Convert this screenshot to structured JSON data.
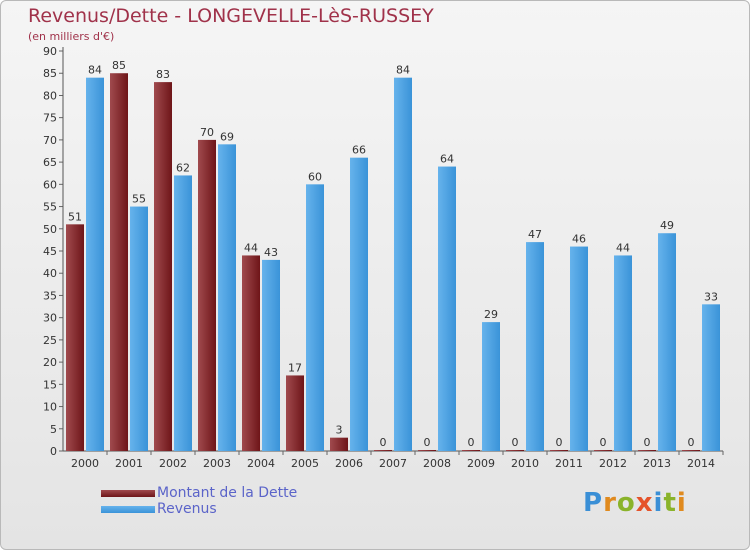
{
  "page": {
    "title": "Revenus/Dette - LONGEVELLE-LèS-RUSSEY",
    "subtitle": "(en milliers d'€)",
    "logo": "Proxiti"
  },
  "legend": [
    {
      "label": "Montant de la Dette",
      "color": "#7a1f25"
    },
    {
      "label": "Revenus",
      "color": "#3d96dc"
    }
  ],
  "colors": {
    "dette": "#6e1518",
    "dette_light": "#a04a4e",
    "revenus": "#3a93d8",
    "revenus_light": "#66b3ec",
    "title": "#a0324a",
    "legend_text": "#5b64c9"
  },
  "chart_data": {
    "type": "bar",
    "categories": [
      "2000",
      "2001",
      "2002",
      "2003",
      "2004",
      "2005",
      "2006",
      "2007",
      "2008",
      "2009",
      "2010",
      "2011",
      "2012",
      "2013",
      "2014"
    ],
    "series": [
      {
        "name": "Montant de la Dette",
        "values": [
          51,
          85,
          83,
          70,
          44,
          17,
          3,
          0,
          0,
          0,
          0,
          0,
          0,
          0,
          0
        ]
      },
      {
        "name": "Revenus",
        "values": [
          84,
          55,
          62,
          69,
          43,
          60,
          66,
          84,
          64,
          29,
          47,
          46,
          44,
          49,
          33
        ]
      }
    ],
    "title": "Revenus/Dette - LONGEVELLE-LèS-RUSSEY",
    "subtitle": "(en milliers d'€)",
    "xlabel": "",
    "ylabel": "",
    "ylim": [
      0,
      90
    ],
    "yticks": [
      0,
      5,
      10,
      15,
      20,
      25,
      30,
      35,
      40,
      45,
      50,
      55,
      60,
      65,
      70,
      75,
      80,
      85,
      90
    ],
    "grid": false,
    "legend_position": "bottom-left"
  }
}
